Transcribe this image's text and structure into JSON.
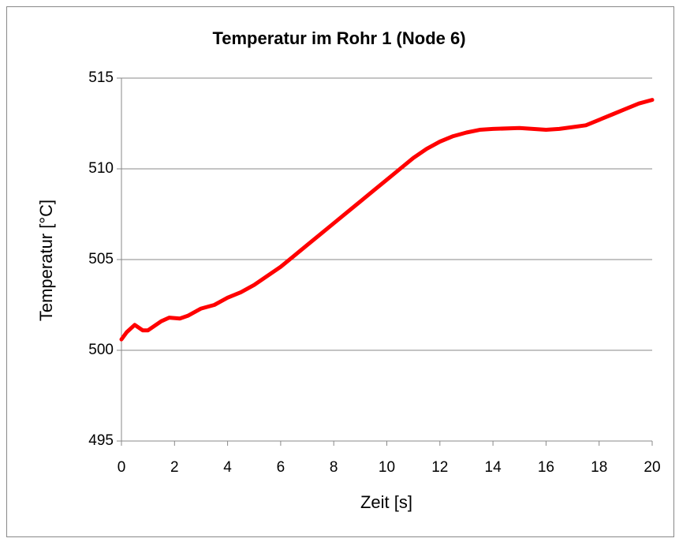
{
  "chart_data": {
    "type": "line",
    "title": "Temperatur im Rohr 1 (Node 6)",
    "x_label": "Zeit [s]",
    "y_label": "Temperatur [°C]",
    "x": [
      0,
      0.2,
      0.5,
      0.8,
      1.0,
      1.5,
      1.8,
      2.2,
      2.5,
      3.0,
      3.5,
      4.0,
      4.5,
      5.0,
      5.5,
      6.0,
      6.5,
      7.0,
      7.5,
      8.0,
      8.5,
      9.0,
      9.5,
      10.0,
      10.5,
      11.0,
      11.5,
      12.0,
      12.5,
      13.0,
      13.5,
      14.0,
      15.0,
      16.0,
      16.5,
      17.0,
      17.5,
      18.0,
      18.5,
      19.0,
      19.5,
      20.0
    ],
    "series": [
      {
        "name": "Node 6",
        "color": "#ff0000",
        "values": [
          500.6,
          501.0,
          501.4,
          501.1,
          501.1,
          501.6,
          501.8,
          501.75,
          501.9,
          502.3,
          502.5,
          502.9,
          503.2,
          503.6,
          504.1,
          504.6,
          505.2,
          505.8,
          506.4,
          507.0,
          507.6,
          508.2,
          508.8,
          509.4,
          510.0,
          510.6,
          511.1,
          511.5,
          511.8,
          512.0,
          512.15,
          512.2,
          512.25,
          512.15,
          512.2,
          512.3,
          512.4,
          512.7,
          513.0,
          513.3,
          513.6,
          513.8
        ]
      }
    ],
    "xlim": [
      0,
      20
    ],
    "xticks": [
      0,
      2,
      4,
      6,
      8,
      10,
      12,
      14,
      16,
      18,
      20
    ],
    "ylim": [
      495,
      515
    ],
    "yticks": [
      495,
      500,
      505,
      510,
      515
    ],
    "grid": true
  }
}
